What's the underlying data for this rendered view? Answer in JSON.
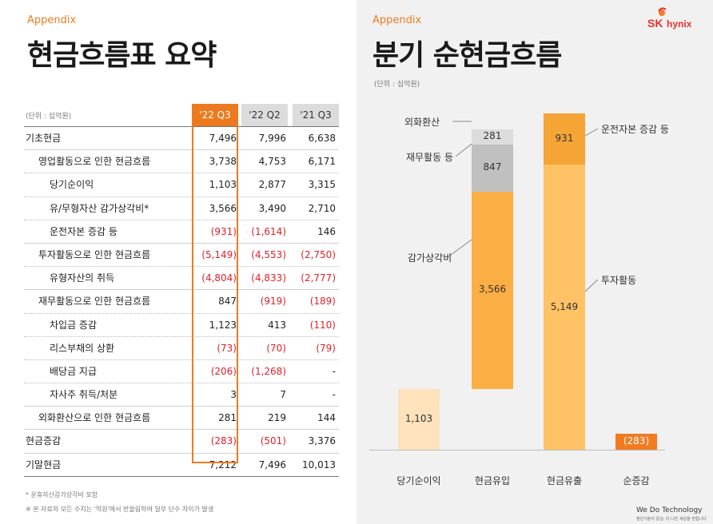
{
  "left": {
    "appendix": "Appendix",
    "title": "현금흐름표 요약",
    "unit": "(단위 : 십억원)",
    "columns": [
      "'22 Q3",
      "'22 Q2",
      "'21 Q3"
    ],
    "rows": [
      {
        "label": "기초현금",
        "values": [
          "7,496",
          "7,996",
          "6,638"
        ],
        "neg": [
          false,
          false,
          false
        ]
      },
      {
        "label": "영업활동으로 인한 현금흐름",
        "values": [
          "3,738",
          "4,753",
          "6,171"
        ],
        "neg": [
          false,
          false,
          false
        ]
      },
      {
        "label": "당기순이익",
        "values": [
          "1,103",
          "2,877",
          "3,315"
        ],
        "neg": [
          false,
          false,
          false
        ]
      },
      {
        "label": "유/무형자산 감가상각비*",
        "values": [
          "3,566",
          "3,490",
          "2,710"
        ],
        "neg": [
          false,
          false,
          false
        ]
      },
      {
        "label": "운전자본 증감 등",
        "values": [
          "(931)",
          "(1,614)",
          "146"
        ],
        "neg": [
          true,
          true,
          false
        ]
      },
      {
        "label": "투자활동으로 인한 현금흐름",
        "values": [
          "(5,149)",
          "(4,553)",
          "(2,750)"
        ],
        "neg": [
          true,
          true,
          true
        ]
      },
      {
        "label": "유형자산의 취득",
        "values": [
          "(4,804)",
          "(4,833)",
          "(2,777)"
        ],
        "neg": [
          true,
          true,
          true
        ]
      },
      {
        "label": "재무활동으로 인한 현금흐름",
        "values": [
          "847",
          "(919)",
          "(189)"
        ],
        "neg": [
          false,
          true,
          true
        ]
      },
      {
        "label": "차입금 증감",
        "values": [
          "1,123",
          "413",
          "(110)"
        ],
        "neg": [
          false,
          false,
          true
        ]
      },
      {
        "label": "리스부채의 상환",
        "values": [
          "(73)",
          "(70)",
          "(79)"
        ],
        "neg": [
          true,
          true,
          true
        ]
      },
      {
        "label": "배당금 지급",
        "values": [
          "(206)",
          "(1,268)",
          "-"
        ],
        "neg": [
          true,
          true,
          false
        ]
      },
      {
        "label": "자사주 취득/처분",
        "values": [
          "3",
          "7",
          "-"
        ],
        "neg": [
          false,
          false,
          false
        ]
      },
      {
        "label": "외화환산으로 인한 현금흐름",
        "values": [
          "281",
          "219",
          "144"
        ],
        "neg": [
          false,
          false,
          false
        ]
      },
      {
        "label": "현금증감",
        "values": [
          "(283)",
          "(501)",
          "3,376"
        ],
        "neg": [
          true,
          true,
          false
        ]
      },
      {
        "label": "기말현금",
        "values": [
          "7,212",
          "7,496",
          "10,013"
        ],
        "neg": [
          false,
          false,
          false
        ]
      }
    ],
    "footnote1": "* 운휴자산감가상각비 포함",
    "footnote2": "※ 본 자료의 모든 수치는 '억원'에서 반올림하여 일부 단수 차이가 발생"
  },
  "right": {
    "appendix": "Appendix",
    "title": "분기 순현금흐름",
    "unit": "(단위 : 십억원)",
    "logo_sk": "SK",
    "logo_hynix": "hynix",
    "tagline": "We Do Technology",
    "tagline_sub": "첨단기술의 중심, 더 나은 세상을 만듭니다"
  },
  "chart_data": {
    "type": "bar",
    "subtype": "waterfall",
    "categories": [
      "당기순이익",
      "현금유입",
      "현금유출",
      "순증감"
    ],
    "segments": [
      {
        "category": "당기순이익",
        "name": "",
        "value": 1103,
        "label": "1,103",
        "color": "#fde2bc"
      },
      {
        "category": "현금유입",
        "name": "감가상각비",
        "value": 3566,
        "label": "3,566",
        "color": "#fbae44"
      },
      {
        "category": "현금유입",
        "name": "재무활동 등",
        "value": 847,
        "label": "847",
        "color": "#c0c0c0"
      },
      {
        "category": "현금유입",
        "name": "외화환산",
        "value": 281,
        "label": "281",
        "color": "#dcdcdc"
      },
      {
        "category": "현금유출",
        "name": "투자활동",
        "value": 5149,
        "label": "5,149",
        "color": "#ffc265"
      },
      {
        "category": "현금유출",
        "name": "운전자본 증감 등",
        "value": 931,
        "label": "931",
        "color": "#f5a436"
      },
      {
        "category": "순증감",
        "name": "",
        "value": -283,
        "label": "(283)",
        "color": "#f27b22"
      }
    ],
    "callouts": [
      "외화환산",
      "재무활동 등",
      "감가상각비",
      "운전자본 증감 등",
      "투자활동"
    ]
  }
}
